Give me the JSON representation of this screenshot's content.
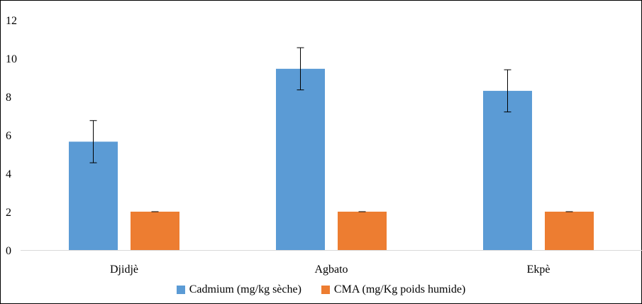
{
  "chart_data": {
    "type": "bar",
    "categories": [
      "Djidjè",
      "Agbato",
      "Ekpè"
    ],
    "series": [
      {
        "name": "Cadmium (mg/kg sèche)",
        "color": "#5b9bd5",
        "values": [
          5.65,
          9.45,
          8.3
        ],
        "errors": [
          1.1,
          1.1,
          1.1
        ]
      },
      {
        "name": "CMA (mg/Kg poids humide)",
        "color": "#ed7d31",
        "values": [
          2,
          2,
          2
        ],
        "errors": [
          0,
          0,
          0
        ]
      }
    ],
    "yticks": [
      "0",
      "2",
      "4",
      "6",
      "8",
      "10",
      "12"
    ],
    "ylim": [
      0,
      12
    ],
    "title": "",
    "xlabel": "",
    "ylabel": "",
    "grid": false,
    "legend_position": "bottom"
  }
}
